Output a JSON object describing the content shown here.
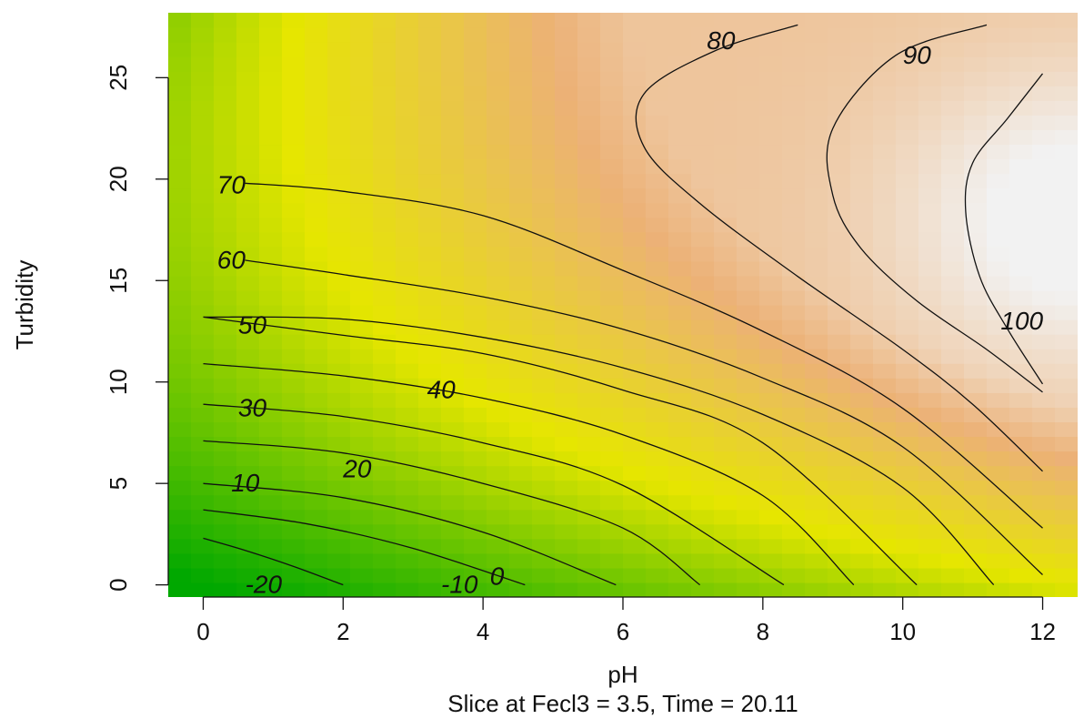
{
  "chart_data": {
    "type": "heatmap",
    "subtype": "contour",
    "xlabel": "pH",
    "ylabel": "Turbidity",
    "subtitle": "Slice at Fecl3 = 3.5, Time = 20.11",
    "xlim": [
      -0.5,
      12.5
    ],
    "ylim": [
      -0.6,
      28.2
    ],
    "x_ticks": [
      0,
      2,
      4,
      6,
      8,
      10,
      12
    ],
    "y_ticks": [
      0,
      5,
      10,
      15,
      20,
      25
    ],
    "color_scale": [
      "#00a800",
      "#e6e600",
      "#ecb176",
      "#f2f2f2"
    ],
    "grid": false,
    "contours": [
      {
        "level": "-20",
        "label_at": [
          0.6,
          0.0
        ],
        "points": [
          [
            0,
            2.3
          ],
          [
            0.6,
            1.7
          ],
          [
            1.3,
            0.9
          ],
          [
            2.0,
            0.0
          ]
        ]
      },
      {
        "level": "-10",
        "label_at": [
          3.4,
          0.0
        ],
        "points": [
          [
            0,
            3.7
          ],
          [
            1.5,
            3.0
          ],
          [
            3.0,
            1.8
          ],
          [
            4.6,
            0.0
          ]
        ]
      },
      {
        "level": "0",
        "label_at": [
          4.1,
          0.4
        ],
        "points": [
          [
            0,
            5.0
          ],
          [
            2.0,
            4.3
          ],
          [
            4.0,
            2.6
          ],
          [
            5.9,
            0.0
          ]
        ]
      },
      {
        "level": "10",
        "label_at": [
          0.4,
          5.0
        ],
        "points": [
          [
            0,
            7.1
          ],
          [
            2.0,
            6.5
          ],
          [
            4.0,
            5.0
          ],
          [
            6.0,
            2.8
          ],
          [
            7.1,
            0.0
          ]
        ]
      },
      {
        "level": "20",
        "label_at": [
          2.0,
          5.7
        ],
        "points": [
          [
            0,
            8.9
          ],
          [
            2.0,
            8.3
          ],
          [
            4.0,
            7.0
          ],
          [
            6.0,
            4.9
          ],
          [
            8.3,
            0.0
          ]
        ]
      },
      {
        "level": "30",
        "label_at": [
          0.5,
          8.7
        ],
        "points": [
          [
            0,
            10.9
          ],
          [
            2.0,
            10.3
          ],
          [
            4.0,
            9.2
          ],
          [
            6.0,
            7.4
          ],
          [
            8.0,
            4.4
          ],
          [
            9.3,
            0.0
          ]
        ]
      },
      {
        "level": "40",
        "label_at": [
          3.2,
          9.6
        ],
        "points": [
          [
            0,
            13.2
          ],
          [
            2.0,
            12.3
          ],
          [
            4.0,
            11.4
          ],
          [
            6.0,
            9.6
          ],
          [
            8.0,
            7.0
          ],
          [
            10.2,
            0.0
          ]
        ]
      },
      {
        "level": "50",
        "label_at": [
          0.5,
          12.8
        ],
        "points": [
          [
            0,
            13.2
          ],
          [
            2.0,
            13.1
          ],
          [
            4.0,
            12.2
          ],
          [
            6.0,
            10.7
          ],
          [
            8.0,
            8.4
          ],
          [
            10.0,
            4.8
          ],
          [
            11.3,
            0.0
          ]
        ]
      },
      {
        "level": "60",
        "label_at": [
          0.2,
          16.0
        ],
        "points": [
          [
            0.6,
            16.0
          ],
          [
            2.0,
            15.3
          ],
          [
            4.0,
            14.2
          ],
          [
            6.0,
            12.6
          ],
          [
            8.0,
            10.2
          ],
          [
            10.0,
            6.8
          ],
          [
            12.0,
            0.5
          ]
        ]
      },
      {
        "level": "70",
        "label_at": [
          0.2,
          19.7
        ],
        "points": [
          [
            0.6,
            19.8
          ],
          [
            2.0,
            19.4
          ],
          [
            4.0,
            18.2
          ],
          [
            6.0,
            15.5
          ],
          [
            8.0,
            12.5
          ],
          [
            10.0,
            8.7
          ],
          [
            12.0,
            2.8
          ]
        ]
      },
      {
        "level": "80",
        "label_at": [
          7.2,
          26.8
        ],
        "points": [
          [
            8.5,
            27.6
          ],
          [
            7.3,
            26.3
          ],
          [
            6.3,
            24.2
          ],
          [
            6.3,
            21.6
          ],
          [
            7.1,
            18.8
          ],
          [
            8.5,
            15.2
          ],
          [
            10.0,
            11.6
          ],
          [
            11.0,
            8.9
          ],
          [
            12.0,
            5.6
          ]
        ]
      },
      {
        "level": "90",
        "label_at": [
          10.0,
          26.1
        ],
        "points": [
          [
            11.2,
            27.6
          ],
          [
            9.9,
            26.1
          ],
          [
            9.0,
            22.5
          ],
          [
            9.0,
            19.2
          ],
          [
            9.4,
            16.6
          ],
          [
            10.2,
            14.0
          ],
          [
            11.2,
            11.6
          ],
          [
            12.0,
            9.5
          ]
        ]
      },
      {
        "level": "100",
        "label_at": [
          11.4,
          13.0
        ],
        "points": [
          [
            12.0,
            25.2
          ],
          [
            11.5,
            23.0
          ],
          [
            11.0,
            20.8
          ],
          [
            10.9,
            18.4
          ],
          [
            11.1,
            15.2
          ],
          [
            11.5,
            12.6
          ],
          [
            12.0,
            9.9
          ]
        ]
      }
    ]
  }
}
